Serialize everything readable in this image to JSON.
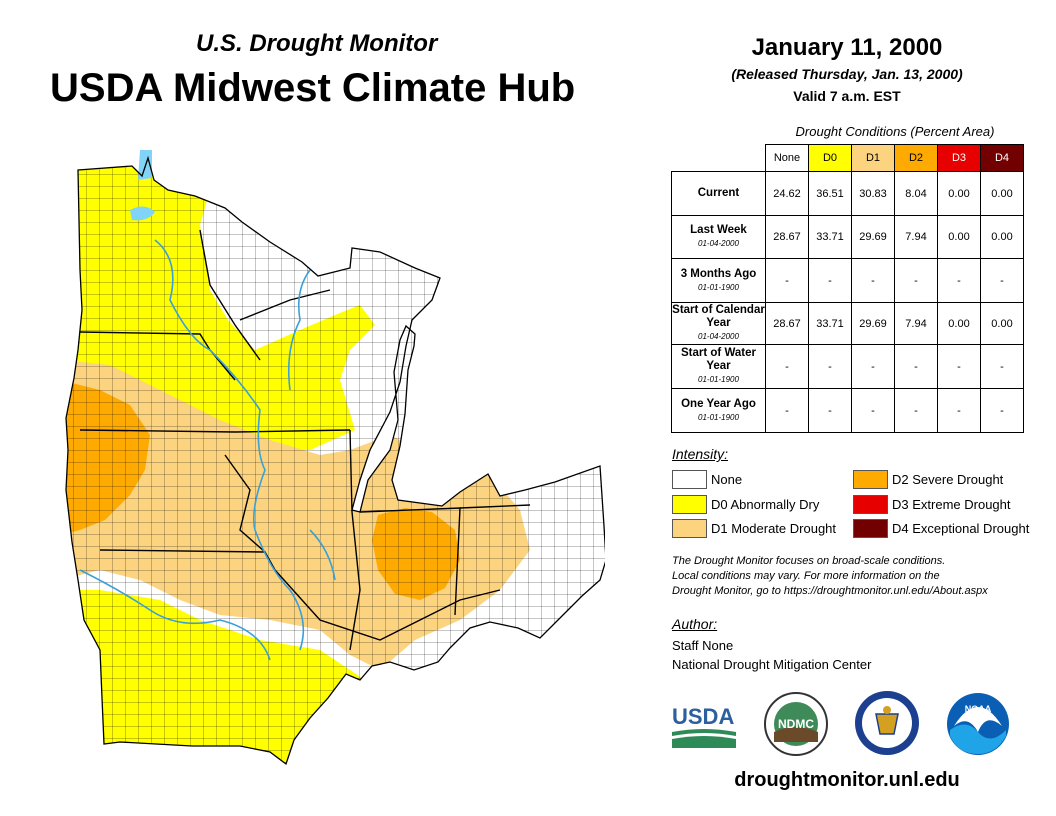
{
  "header": {
    "subtitle": "U.S. Drought Monitor",
    "title": "USDA Midwest Climate Hub",
    "date": "January 11, 2000",
    "released": "(Released Thursday, Jan. 13, 2000)",
    "valid": "Valid 7 a.m. EST"
  },
  "stats_table": {
    "caption": "Drought Conditions (Percent Area)",
    "columns": [
      "None",
      "D0",
      "D1",
      "D2",
      "D3",
      "D4"
    ],
    "column_colors": [
      "#ffffff",
      "#ffff00",
      "#fcd37f",
      "#ffaa00",
      "#e60000",
      "#730000"
    ],
    "rows": [
      {
        "label": "Current",
        "date": "",
        "values": [
          "24.62",
          "36.51",
          "30.83",
          "8.04",
          "0.00",
          "0.00"
        ]
      },
      {
        "label": "Last Week",
        "date": "01-04-2000",
        "values": [
          "28.67",
          "33.71",
          "29.69",
          "7.94",
          "0.00",
          "0.00"
        ]
      },
      {
        "label": "3 Months Ago",
        "date": "01-01-1900",
        "values": [
          "-",
          "-",
          "-",
          "-",
          "-",
          "-"
        ]
      },
      {
        "label": "Start of Calendar Year",
        "date": "01-04-2000",
        "values": [
          "28.67",
          "33.71",
          "29.69",
          "7.94",
          "0.00",
          "0.00"
        ]
      },
      {
        "label": "Start of Water Year",
        "date": "01-01-1900",
        "values": [
          "-",
          "-",
          "-",
          "-",
          "-",
          "-"
        ]
      },
      {
        "label": "One Year Ago",
        "date": "01-01-1900",
        "values": [
          "-",
          "-",
          "-",
          "-",
          "-",
          "-"
        ]
      }
    ]
  },
  "legend": {
    "heading": "Intensity:",
    "items": [
      {
        "label": "None",
        "color": "#ffffff"
      },
      {
        "label": "D0 Abnormally Dry",
        "color": "#ffff00"
      },
      {
        "label": "D1 Moderate Drought",
        "color": "#fcd37f"
      },
      {
        "label": "D2 Severe Drought",
        "color": "#ffaa00"
      },
      {
        "label": "D3 Extreme Drought",
        "color": "#e60000"
      },
      {
        "label": "D4 Exceptional Drought",
        "color": "#730000"
      }
    ]
  },
  "note": {
    "line1": "The Drought Monitor focuses on broad-scale conditions.",
    "line2": "Local conditions may vary. For more information on the",
    "line3": "Drought Monitor, go to https://droughtmonitor.unl.edu/About.aspx"
  },
  "author": {
    "heading": "Author:",
    "name": "Staff None",
    "org": "National Drought Mitigation Center"
  },
  "logos": {
    "usda": "USDA",
    "ndmc": "NDMC",
    "noaa": "NOAA"
  },
  "footer_url": "droughtmonitor.unl.edu",
  "map_colors": {
    "none": "#ffffff",
    "d0": "#ffff00",
    "d1": "#fcd37f",
    "d2": "#ffaa00",
    "water": "#7fd4f7",
    "river": "#3aa0d8",
    "border": "#000000"
  }
}
